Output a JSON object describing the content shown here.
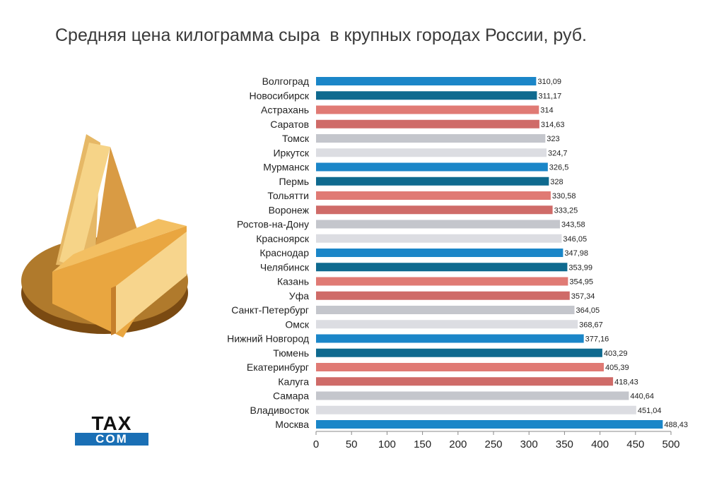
{
  "header": {
    "title": "Средняя цена килограмма сыра  в крупных городах России, руб."
  },
  "logo": {
    "line1": "TAX",
    "line2": "COM"
  },
  "illustration": {
    "icon": "cheese-icon"
  },
  "colors": {
    "blue": "#1b86c8",
    "dark_blue": "#0f6a8f",
    "salmon": "#e07a74",
    "dark_salmon": "#cf6b68",
    "gray": "#c4c6cc",
    "light_gray": "#dcdde2",
    "axis": "#888888"
  },
  "chart_data": {
    "type": "bar",
    "orientation": "horizontal",
    "title": "Средняя цена килограмма сыра  в крупных городах России, руб.",
    "categories": [
      "Волгоград",
      "Новосибирск",
      "Астрахань",
      "Саратов",
      "Томск",
      "Иркутск",
      "Мурманск",
      "Пермь",
      "Тольятти",
      "Воронеж",
      "Ростов-на-Дону",
      "Красноярск",
      "Краснодар",
      "Челябинск",
      "Казань",
      "Уфа",
      "Санкт-Петербург",
      "Омск",
      "Нижний Новгород",
      "Тюмень",
      "Екатеринбург",
      "Калуга",
      "Самара",
      "Владивосток",
      "Москва"
    ],
    "values": [
      310.09,
      311.17,
      314,
      314.63,
      323,
      324.7,
      326.5,
      328,
      330.58,
      333.25,
      343.58,
      346.05,
      347.98,
      353.99,
      354.95,
      357.34,
      364.05,
      368.67,
      377.16,
      403.29,
      405.39,
      418.43,
      440.64,
      451.04,
      488.43
    ],
    "value_labels": [
      "310,09",
      "311,17",
      "314",
      "314,63",
      "323",
      "324,7",
      "326,5",
      "328",
      "330,58",
      "333,25",
      "343,58",
      "346,05",
      "347,98",
      "353,99",
      "354,95",
      "357,34",
      "364,05",
      "368,67",
      "377,16",
      "403,29",
      "405,39",
      "418,43",
      "440,64",
      "451,04",
      "488,43"
    ],
    "bar_color_keys": [
      "blue",
      "dark_blue",
      "salmon",
      "dark_salmon",
      "gray",
      "light_gray",
      "blue",
      "dark_blue",
      "salmon",
      "dark_salmon",
      "gray",
      "light_gray",
      "blue",
      "dark_blue",
      "salmon",
      "dark_salmon",
      "gray",
      "light_gray",
      "blue",
      "dark_blue",
      "salmon",
      "dark_salmon",
      "gray",
      "light_gray",
      "blue"
    ],
    "xlim": [
      0,
      500
    ],
    "xticks": [
      "0",
      "50",
      "100",
      "150",
      "200",
      "250",
      "300",
      "350",
      "400",
      "450",
      "500"
    ],
    "xlabel": "",
    "ylabel": "",
    "grid": false,
    "legend": "none"
  }
}
